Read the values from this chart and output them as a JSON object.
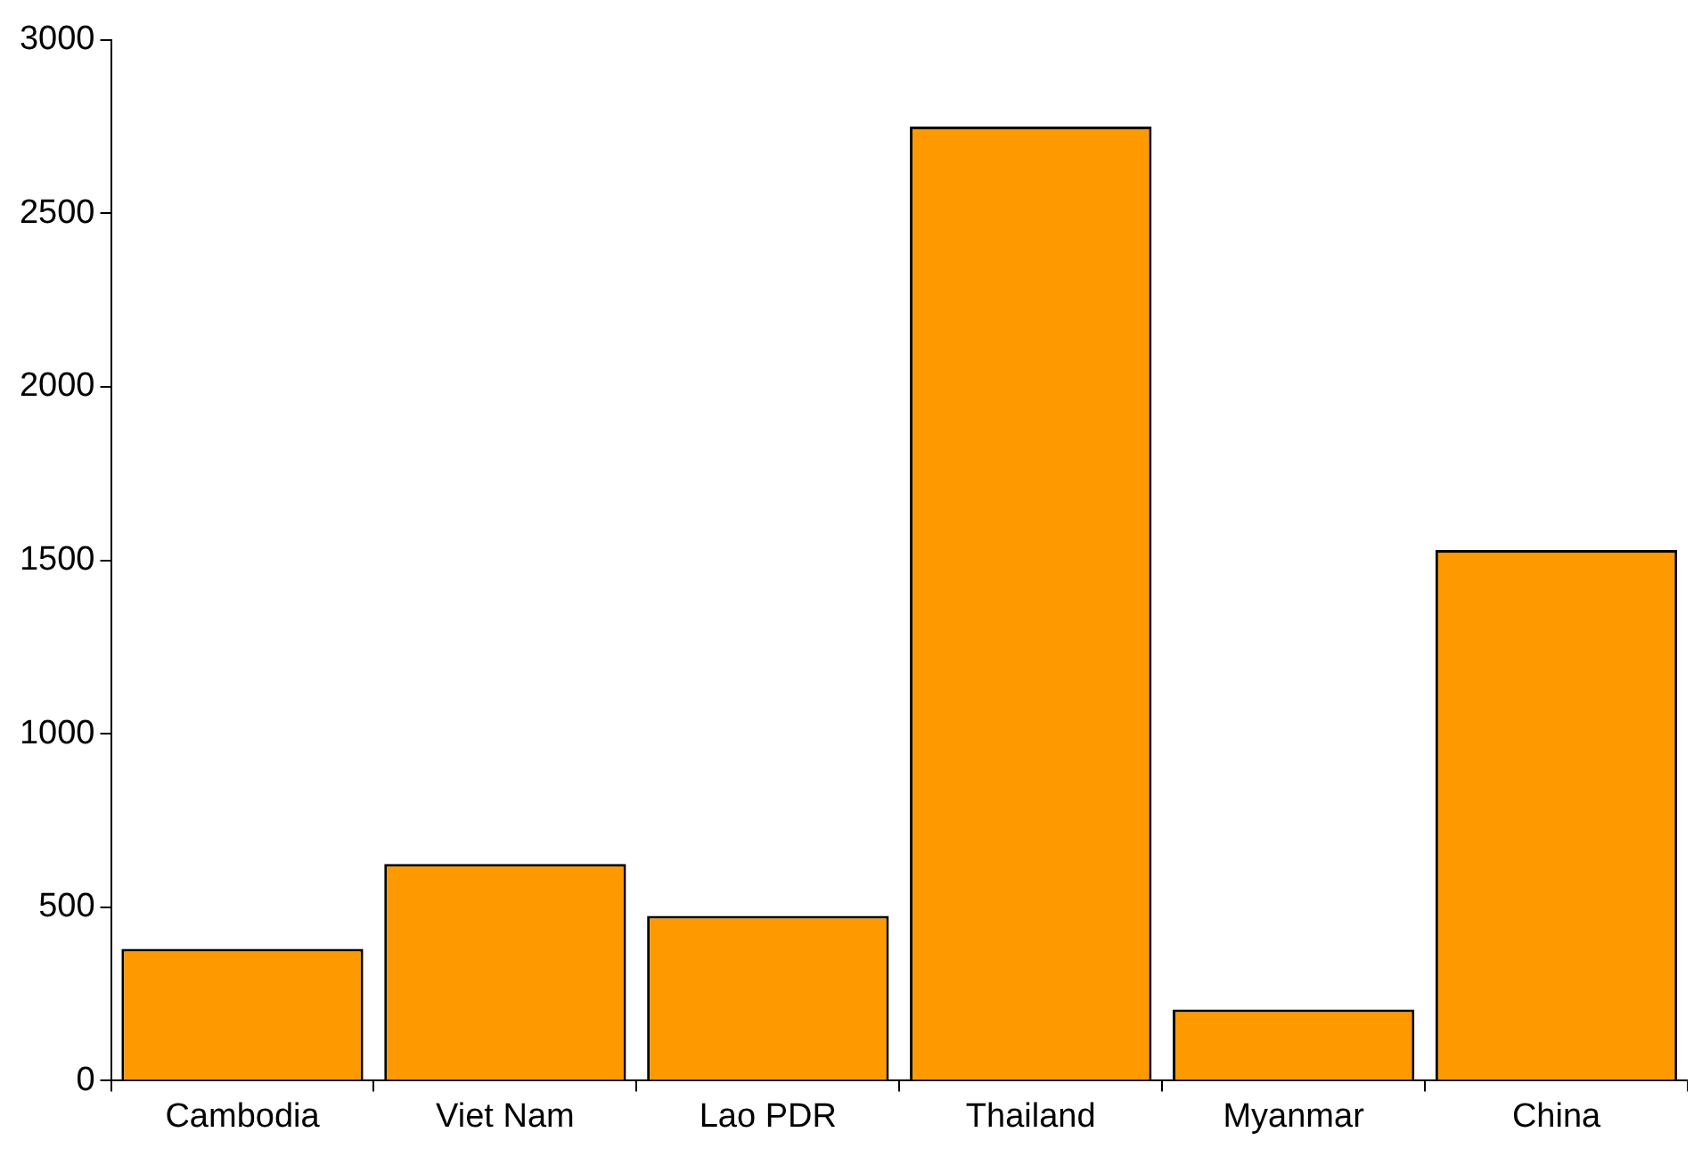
{
  "chart_data": {
    "type": "bar",
    "categories": [
      "Cambodia",
      "Viet Nam",
      "Lao PDR",
      "Thailand",
      "Myanmar",
      "China"
    ],
    "values": [
      380,
      625,
      475,
      2750,
      205,
      1530
    ],
    "color": "#ff9900",
    "ylim": [
      0,
      3000
    ],
    "yticks": [
      0,
      500,
      1000,
      1500,
      2000,
      2500,
      3000
    ]
  }
}
